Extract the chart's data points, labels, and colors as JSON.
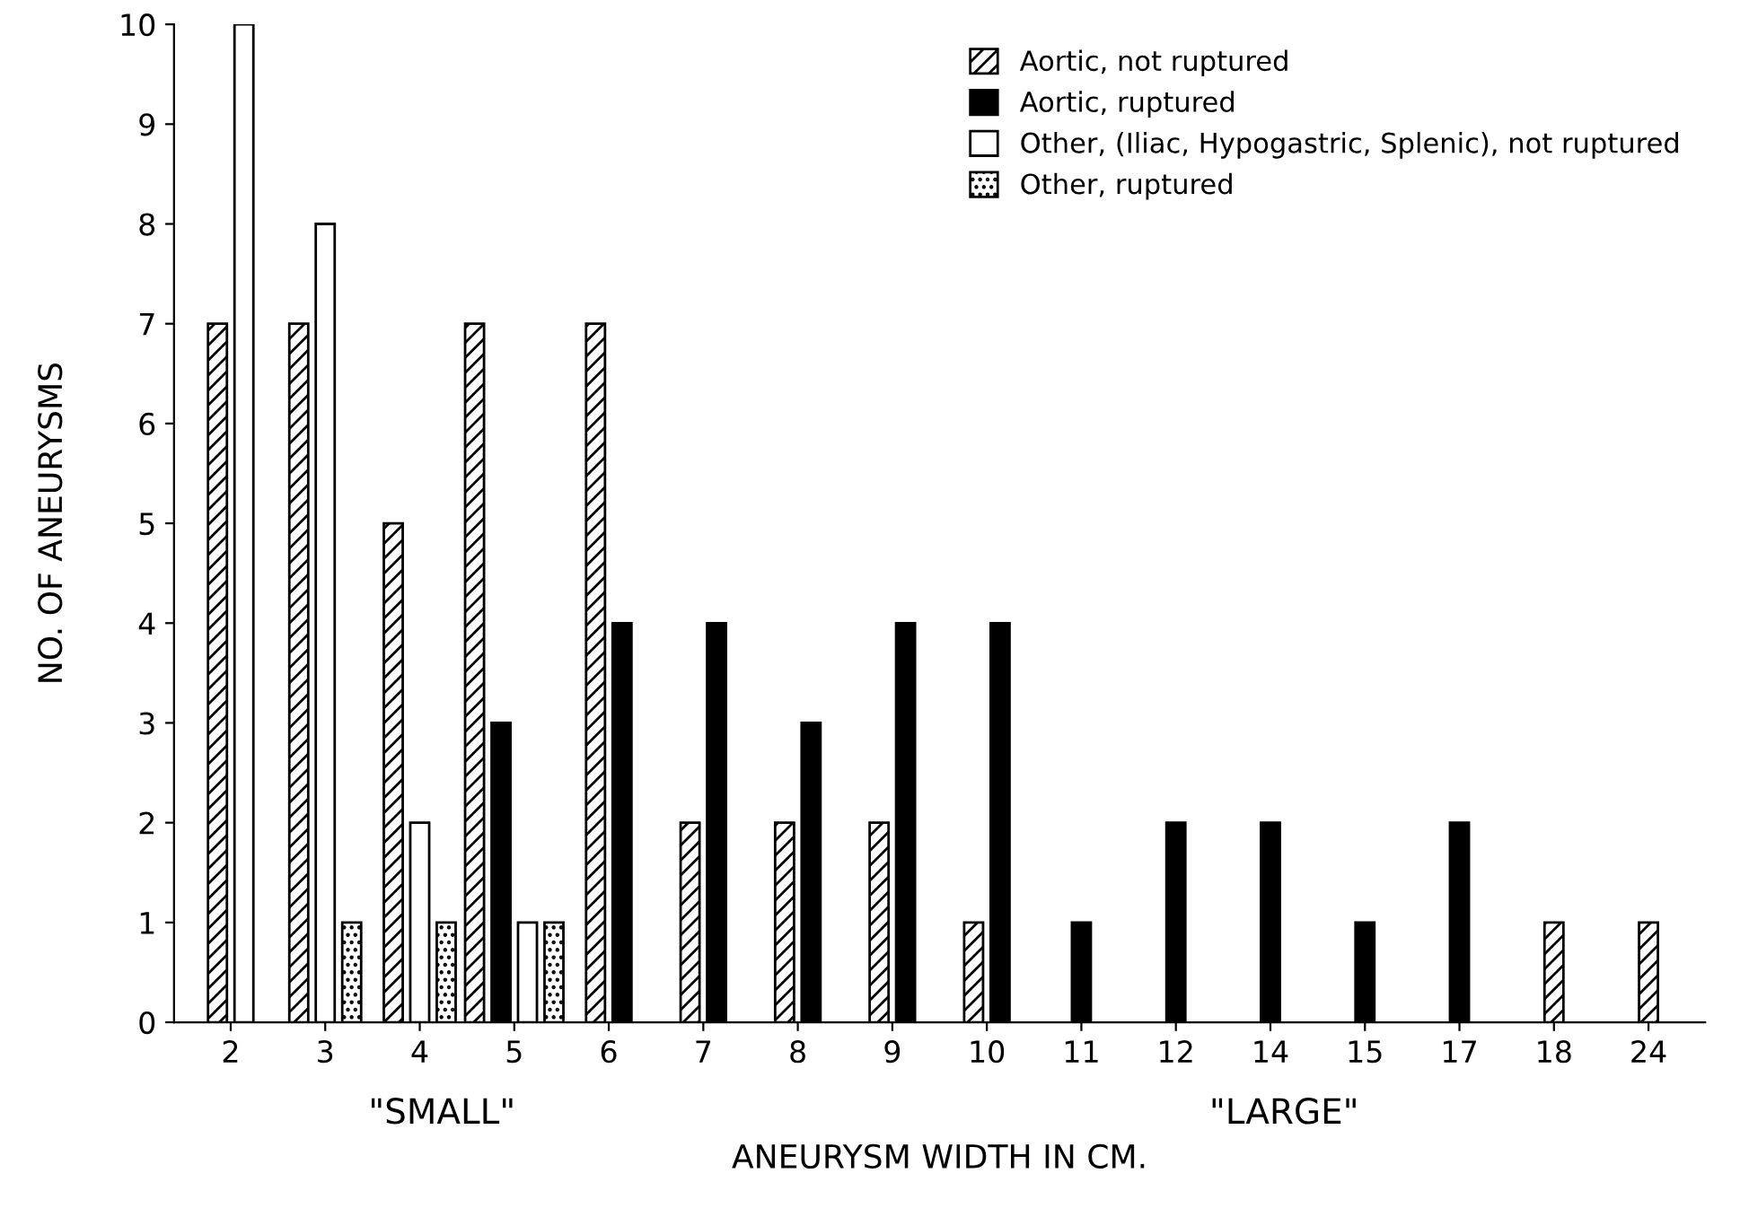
{
  "chart_data": {
    "type": "bar",
    "xlabel": "ANEURYSM WIDTH IN CM.",
    "ylabel": "NO. OF ANEURYSMS",
    "categories": [
      "2",
      "3",
      "4",
      "5",
      "6",
      "7",
      "8",
      "9",
      "10",
      "11",
      "12",
      "14",
      "15",
      "17",
      "18",
      "24"
    ],
    "series": [
      {
        "name": "Aortic, not ruptured",
        "color": "#000000",
        "values": [
          7,
          7,
          5,
          7,
          7,
          2,
          2,
          2,
          1,
          null,
          null,
          null,
          null,
          null,
          1,
          1
        ]
      },
      {
        "name": "Aortic, ruptured",
        "color": "#000000",
        "values": [
          null,
          null,
          null,
          3,
          4,
          4,
          3,
          4,
          4,
          1,
          2,
          2,
          1,
          2,
          null,
          null
        ]
      },
      {
        "name": "Other, (Iliac, Hypogastric, Splenic), not ruptured",
        "color": "#ffffff",
        "values": [
          10,
          8,
          2,
          1,
          null,
          null,
          null,
          null,
          null,
          null,
          null,
          null,
          null,
          null,
          null,
          null
        ]
      },
      {
        "name": "Other, ruptured",
        "color": "#000000",
        "values": [
          null,
          1,
          1,
          1,
          null,
          null,
          null,
          null,
          null,
          null,
          null,
          null,
          null,
          null,
          null,
          null
        ]
      }
    ],
    "ylim": [
      0,
      10
    ],
    "yticks": [
      0,
      1,
      2,
      3,
      4,
      5,
      6,
      7,
      8,
      9,
      10
    ],
    "grid": false,
    "legend": "top right",
    "annotations": [
      "\"SMALL\"",
      "\"LARGE\""
    ]
  }
}
